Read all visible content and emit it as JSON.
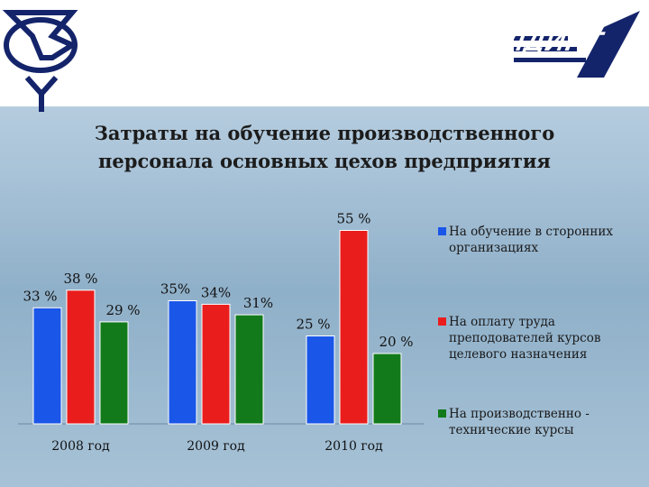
{
  "header": {
    "brand": "АВИАПРИБОР-ХОЛДИНГ",
    "logo_icon": "company-emblem-icon",
    "plane_icon": "airplane-silhouette-icon"
  },
  "colors": {
    "blue": "#1a56e8",
    "red": "#ea1d1d",
    "green": "#127a1a",
    "brand": "#14246b"
  },
  "chart_data": {
    "type": "bar",
    "title": "Затраты на обучение производственного персонала основных цехов предприятия",
    "categories": [
      "2008 год",
      "2009 год",
      "2010 год"
    ],
    "series": [
      {
        "name": "На обучение в сторонних организациях",
        "values": [
          33,
          35,
          25
        ],
        "labels": [
          "33 %",
          "35%",
          "25 %"
        ],
        "color": "#1a56e8"
      },
      {
        "name": "На оплату труда преподователей курсов целевого назначения",
        "values": [
          38,
          34,
          55
        ],
        "labels": [
          "38 %",
          "34%",
          "55 %"
        ],
        "color": "#ea1d1d"
      },
      {
        "name": "На производственно - технические курсы",
        "values": [
          29,
          31,
          20
        ],
        "labels": [
          "29 %",
          "31%",
          "20 %"
        ],
        "color": "#127a1a"
      }
    ],
    "ylim": [
      0,
      60
    ],
    "grid": false,
    "legend": "right"
  }
}
